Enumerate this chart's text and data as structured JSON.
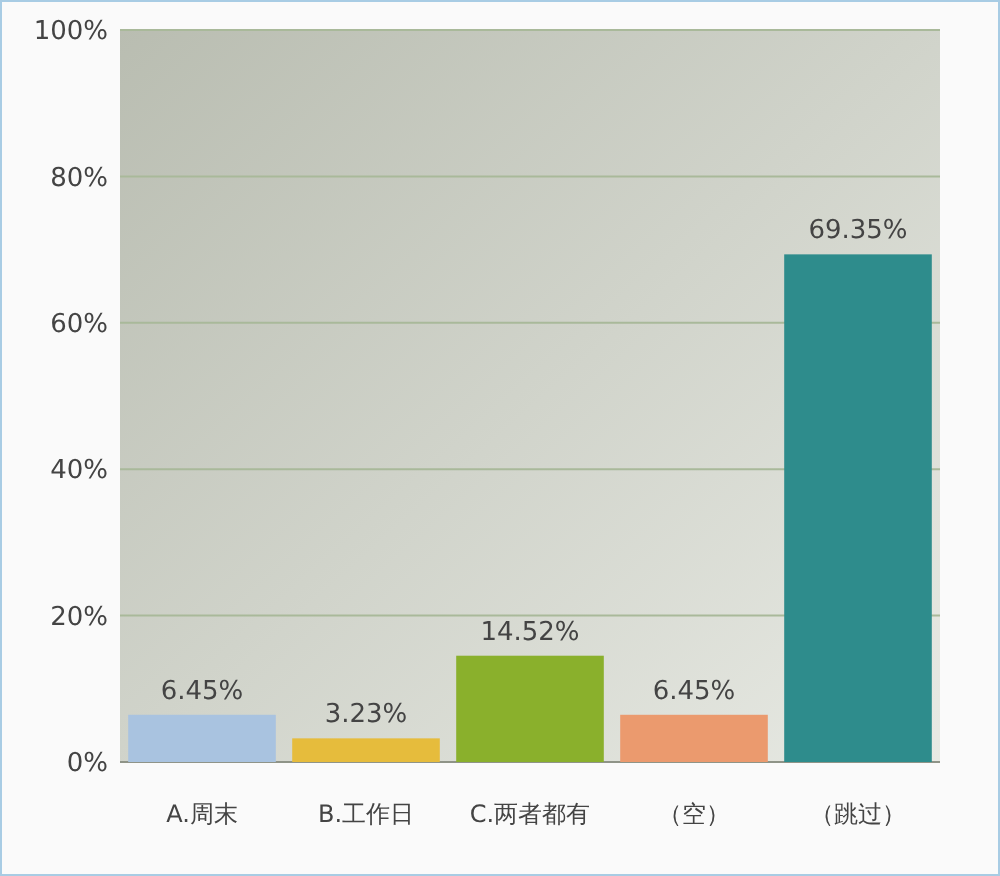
{
  "chart_data": {
    "type": "bar",
    "categories": [
      "A.周末",
      "B.工作日",
      "C.两者都有",
      "（空）",
      "（跳过）"
    ],
    "values": [
      6.45,
      3.23,
      14.52,
      6.45,
      69.35
    ],
    "colors": [
      "#a9c3e0",
      "#e6bc3c",
      "#8ab02c",
      "#eb9a6e",
      "#2e8c8c"
    ],
    "value_labels": [
      "6.45%",
      "3.23%",
      "14.52%",
      "6.45%",
      "69.35%"
    ],
    "ylim": [
      0,
      100
    ],
    "yticks": [
      {
        "value": 0,
        "label": "0%"
      },
      {
        "value": 20,
        "label": "20%"
      },
      {
        "value": 40,
        "label": "40%"
      },
      {
        "value": 60,
        "label": "60%"
      },
      {
        "value": 80,
        "label": "80%"
      },
      {
        "value": 100,
        "label": "100%"
      }
    ],
    "grid": "y"
  }
}
